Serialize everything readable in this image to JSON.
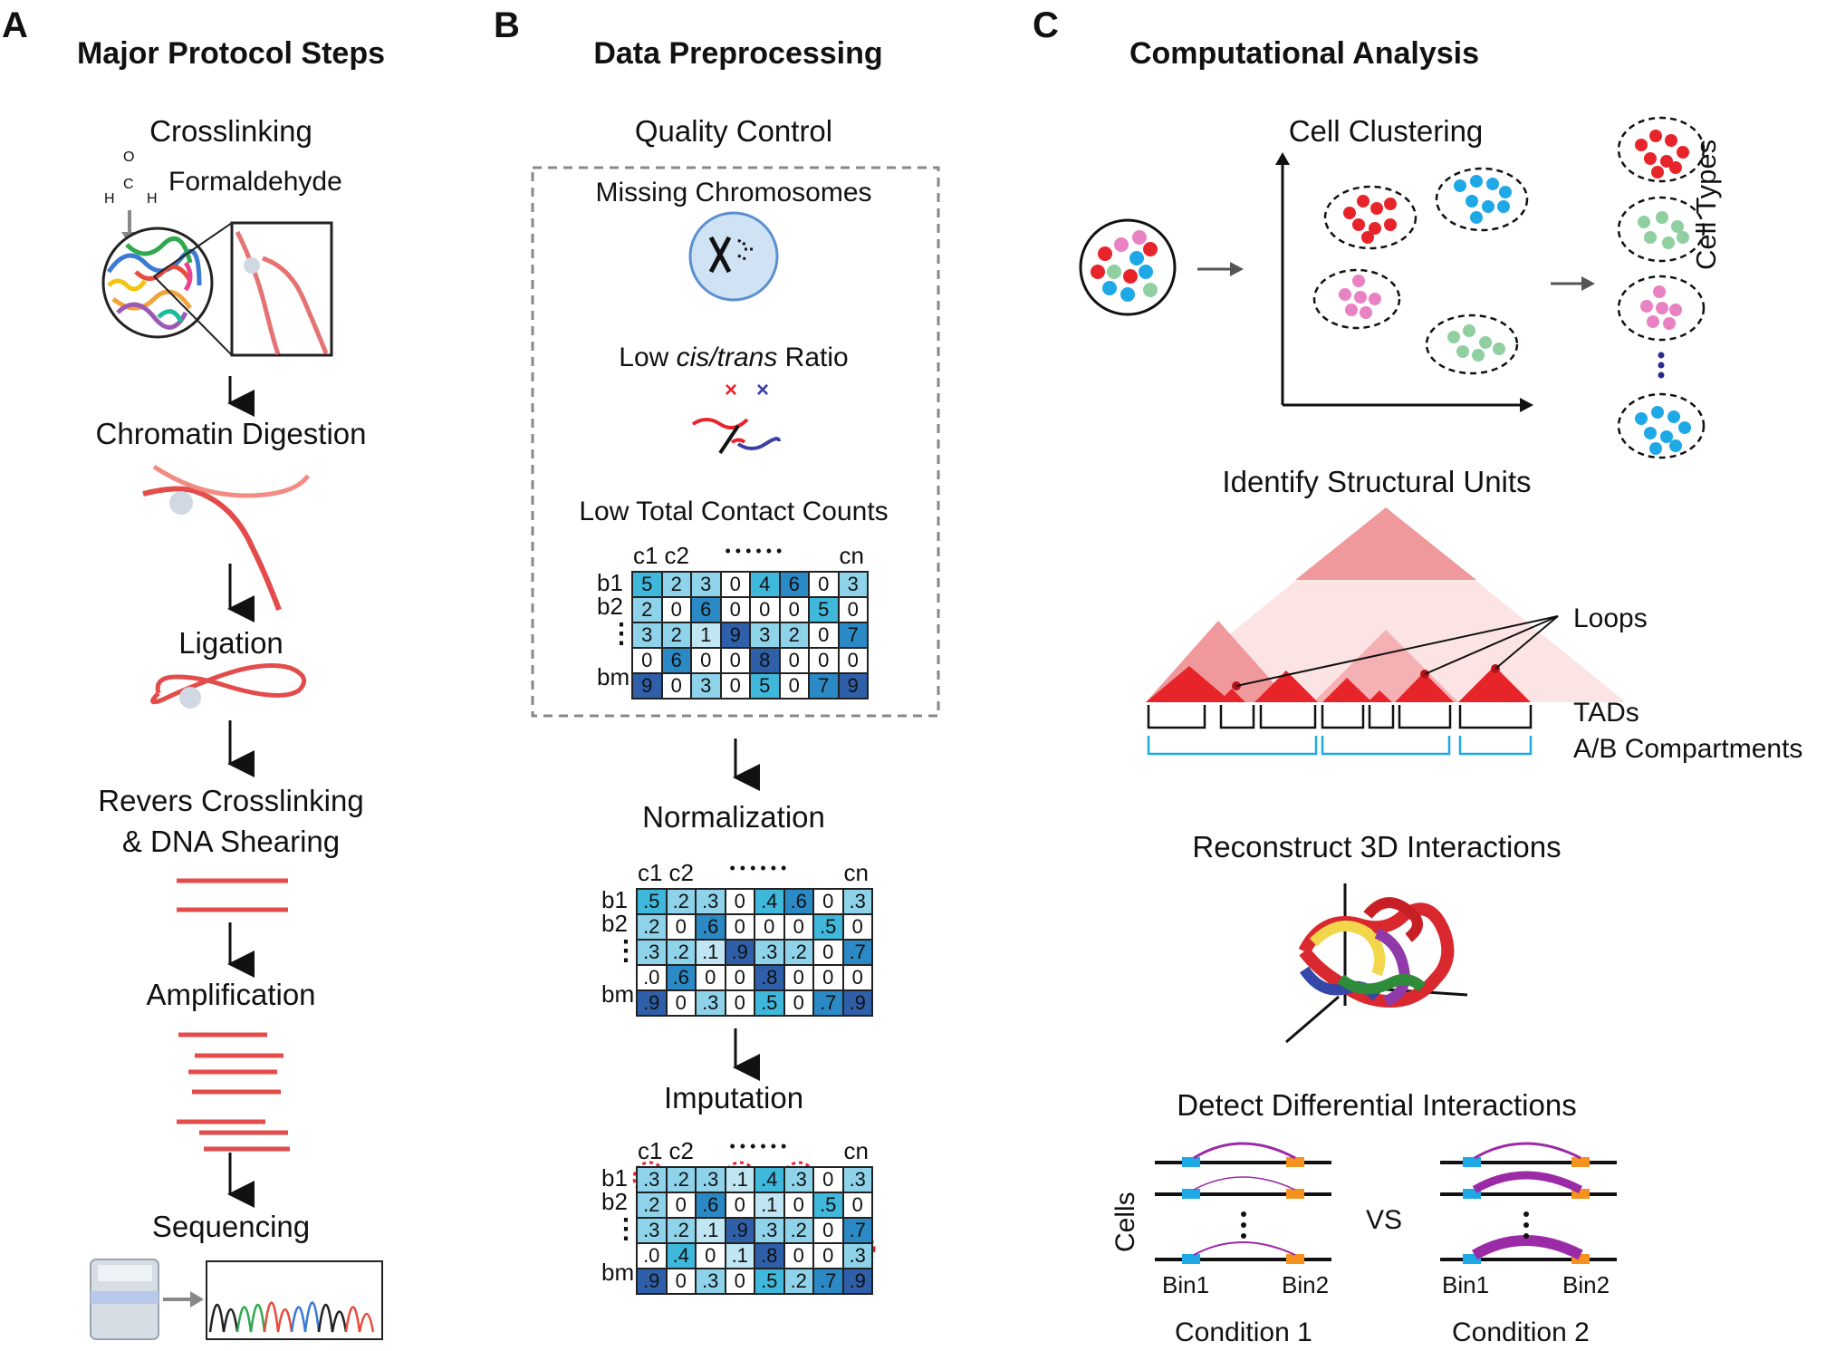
{
  "panel_a": {
    "letter": "A",
    "title": "Major Protocol Steps",
    "steps": [
      "Crosslinking",
      "Chromatin Digestion",
      "Ligation",
      "Revers Crosslinking",
      "& DNA Shearing",
      "Amplification",
      "Sequencing"
    ],
    "formaldehyde_label": "Formaldehyde",
    "formula": {
      "o": "O",
      "c": "C",
      "h1": "H",
      "h2": "H"
    }
  },
  "panel_b": {
    "letter": "B",
    "title": "Data Preprocessing",
    "qc_title": "Quality Control",
    "missing": "Missing Chromosomes",
    "ratio_pre": "Low ",
    "ratio_italic": "cis/trans",
    "ratio_post": " Ratio",
    "contact": "Low Total Contact Counts",
    "normalization": "Normalization",
    "imputation": "Imputation",
    "col_labels": [
      "c1",
      "c2",
      "• • • • • •",
      "cn"
    ],
    "row_labels": [
      "b1",
      "b2",
      "⋮",
      "bm"
    ],
    "raw_matrix": [
      [
        "5",
        "2",
        "3",
        "0",
        "4",
        "6",
        "0",
        "3"
      ],
      [
        "2",
        "0",
        "6",
        "0",
        "0",
        "0",
        "5",
        "0"
      ],
      [
        "3",
        "2",
        "1",
        "9",
        "3",
        "2",
        "0",
        "7"
      ],
      [
        "0",
        "6",
        "0",
        "0",
        "8",
        "0",
        "0",
        "0"
      ],
      [
        "9",
        "0",
        "3",
        "0",
        "5",
        "0",
        "7",
        "9"
      ]
    ],
    "norm_matrix": [
      [
        ".5",
        ".2",
        ".3",
        "0",
        ".4",
        ".6",
        "0",
        ".3"
      ],
      [
        ".2",
        "0",
        ".6",
        "0",
        "0",
        "0",
        ".5",
        "0"
      ],
      [
        ".3",
        ".2",
        ".1",
        ".9",
        ".3",
        ".2",
        "0",
        ".7"
      ],
      [
        ".0",
        ".6",
        "0",
        "0",
        ".8",
        "0",
        "0",
        "0"
      ],
      [
        ".9",
        "0",
        ".3",
        "0",
        ".5",
        "0",
        ".7",
        ".9"
      ]
    ],
    "imp_matrix": [
      [
        ".3",
        ".2",
        ".3",
        ".1",
        ".4",
        ".3",
        "0",
        ".3"
      ],
      [
        ".2",
        "0",
        ".6",
        "0",
        ".1",
        "0",
        ".5",
        "0"
      ],
      [
        ".3",
        ".2",
        ".1",
        ".9",
        ".3",
        ".2",
        "0",
        ".7"
      ],
      [
        ".0",
        ".4",
        "0",
        ".1",
        ".8",
        "0",
        "0",
        ".3"
      ],
      [
        ".9",
        "0",
        ".3",
        "0",
        ".5",
        ".2",
        ".7",
        ".9"
      ]
    ]
  },
  "panel_c": {
    "letter": "C",
    "title": "Computational Analysis",
    "clustering": "Cell Clustering",
    "cell_types": "Cell Types",
    "structural": "Identify Structural Units",
    "loops": "Loops",
    "tads": "TADs",
    "ab": "A/B Compartments",
    "reconstruct": "Reconstruct 3D Interactions",
    "differential": "Detect Differential Interactions",
    "cells": "Cells",
    "vs": "VS",
    "bin1": "Bin1",
    "bin2": "Bin2",
    "cond1": "Condition 1",
    "cond2": "Condition 2"
  },
  "colors": {
    "red": "#e8242b",
    "blue": "#1ea9e6",
    "pink": "#e882c2",
    "green": "#8fcfa0",
    "heat_light": "#bfe6f2",
    "heat_mid": "#3fb8dc",
    "heat_dark": "#2f5fa8"
  }
}
